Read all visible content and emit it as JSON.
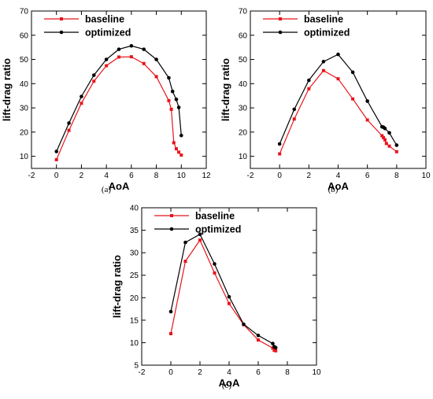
{
  "chart_data": [
    {
      "type": "line",
      "panel_label": "(a)",
      "xlabel": "AoA",
      "ylabel": "lift-drag ratio",
      "xlim": [
        -2,
        12
      ],
      "ylim": [
        5,
        70
      ],
      "xticks": [
        -2,
        0,
        2,
        4,
        6,
        8,
        10,
        12
      ],
      "yticks": [
        10,
        20,
        30,
        40,
        50,
        60,
        70
      ],
      "x_tick_labels": [
        "-2",
        "0",
        "2",
        "4",
        "6",
        "8",
        "10",
        "12"
      ],
      "y_tick_labels": [
        "10",
        "20",
        "30",
        "40",
        "50",
        "60",
        "70"
      ],
      "legend_position": "top-left",
      "grid": false,
      "series": [
        {
          "name": "baseline",
          "color": "#e8151b",
          "marker": "square",
          "points": [
            [
              0,
              8.6
            ],
            [
              1,
              20.7
            ],
            [
              2,
              31.9
            ],
            [
              3,
              41.0
            ],
            [
              4,
              47.4
            ],
            [
              5,
              51.0
            ],
            [
              6,
              51.1
            ],
            [
              7,
              48.3
            ],
            [
              8,
              42.9
            ],
            [
              9,
              33.0
            ],
            [
              9.2,
              29.4
            ],
            [
              9.4,
              15.6
            ],
            [
              9.6,
              13.1
            ],
            [
              9.8,
              11.7
            ],
            [
              10.0,
              10.5
            ]
          ]
        },
        {
          "name": "optimized",
          "color": "#000000",
          "marker": "circle",
          "points": [
            [
              0,
              12.0
            ],
            [
              1,
              23.7
            ],
            [
              2,
              34.7
            ],
            [
              3,
              43.5
            ],
            [
              4,
              50.0
            ],
            [
              5,
              54.2
            ],
            [
              6,
              55.6
            ],
            [
              7,
              54.2
            ],
            [
              8,
              50.0
            ],
            [
              9,
              42.4
            ],
            [
              9.3,
              36.8
            ],
            [
              9.6,
              33.5
            ],
            [
              9.8,
              30.2
            ],
            [
              10.0,
              18.6
            ]
          ]
        }
      ]
    },
    {
      "type": "line",
      "panel_label": "(b)",
      "xlabel": "AoA",
      "ylabel": "lift-drag ratio",
      "xlim": [
        -2,
        10
      ],
      "ylim": [
        5,
        70
      ],
      "xticks": [
        -2,
        0,
        2,
        4,
        6,
        8,
        10
      ],
      "yticks": [
        10,
        20,
        30,
        40,
        50,
        60,
        70
      ],
      "x_tick_labels": [
        "-2",
        "0",
        "2",
        "4",
        "6",
        "8",
        "10"
      ],
      "y_tick_labels": [
        "10",
        "20",
        "30",
        "40",
        "50",
        "60",
        "70"
      ],
      "legend_position": "top-left",
      "grid": false,
      "series": [
        {
          "name": "baseline",
          "color": "#e8151b",
          "marker": "square",
          "points": [
            [
              0,
              11.0
            ],
            [
              1,
              25.4
            ],
            [
              2,
              37.9
            ],
            [
              3,
              45.4
            ],
            [
              4,
              42.0
            ],
            [
              5,
              33.7
            ],
            [
              6,
              25.0
            ],
            [
              7,
              18.5
            ],
            [
              7.1,
              17.7
            ],
            [
              7.2,
              16.8
            ],
            [
              7.3,
              15.3
            ],
            [
              7.5,
              14.2
            ],
            [
              8,
              11.9
            ]
          ]
        },
        {
          "name": "optimized",
          "color": "#000000",
          "marker": "circle",
          "points": [
            [
              0,
              15.1
            ],
            [
              1,
              29.4
            ],
            [
              2,
              41.4
            ],
            [
              3,
              49.1
            ],
            [
              4,
              52.1
            ],
            [
              5,
              44.7
            ],
            [
              6,
              32.8
            ],
            [
              7,
              22.2
            ],
            [
              7.1,
              22.0
            ],
            [
              7.2,
              21.5
            ],
            [
              7.5,
              19.7
            ],
            [
              8,
              14.6
            ]
          ]
        }
      ]
    },
    {
      "type": "line",
      "panel_label": "(c)",
      "xlabel": "AoA",
      "ylabel": "lift-drag ratio",
      "xlim": [
        -2,
        10
      ],
      "ylim": [
        5,
        40
      ],
      "xticks": [
        -2,
        0,
        2,
        4,
        6,
        8,
        10
      ],
      "yticks": [
        5,
        10,
        15,
        20,
        25,
        30,
        35,
        40
      ],
      "x_tick_labels": [
        "-2",
        "0",
        "2",
        "4",
        "6",
        "8",
        "10"
      ],
      "y_tick_labels": [
        "5",
        "10",
        "15",
        "20",
        "25",
        "30",
        "35",
        "40"
      ],
      "legend_position": "top-left",
      "grid": false,
      "series": [
        {
          "name": "baseline",
          "color": "#e8151b",
          "marker": "square",
          "points": [
            [
              0,
              12.0
            ],
            [
              1,
              28.1
            ],
            [
              2,
              32.8
            ],
            [
              3,
              25.5
            ],
            [
              4,
              18.7
            ],
            [
              5,
              14.0
            ],
            [
              6,
              10.6
            ],
            [
              7,
              8.8
            ],
            [
              7.1,
              8.3
            ],
            [
              7.2,
              8.2
            ]
          ]
        },
        {
          "name": "optimized",
          "color": "#000000",
          "marker": "circle",
          "points": [
            [
              0,
              16.9
            ],
            [
              1,
              32.3
            ],
            [
              2,
              34.1
            ],
            [
              3,
              27.5
            ],
            [
              4,
              20.2
            ],
            [
              5,
              14.1
            ],
            [
              6,
              11.6
            ],
            [
              7,
              9.8
            ],
            [
              7.1,
              9.1
            ],
            [
              7.2,
              8.9
            ]
          ]
        }
      ]
    }
  ]
}
